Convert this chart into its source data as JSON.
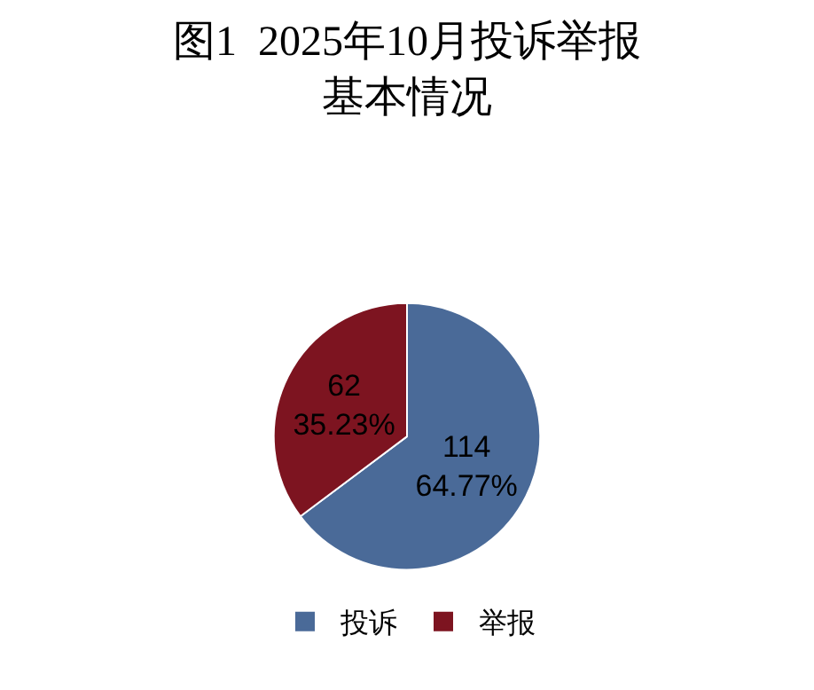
{
  "chart_data": {
    "type": "pie",
    "title": "图1  2025年10月投诉举报基本情况",
    "categories": [
      "投诉",
      "举报"
    ],
    "values": [
      114,
      62
    ],
    "colors": [
      "#4a6a98",
      "#7d1420"
    ],
    "value_labels": [
      "114\n64.77%",
      "62\n35.23%"
    ],
    "legend": "bottom"
  }
}
